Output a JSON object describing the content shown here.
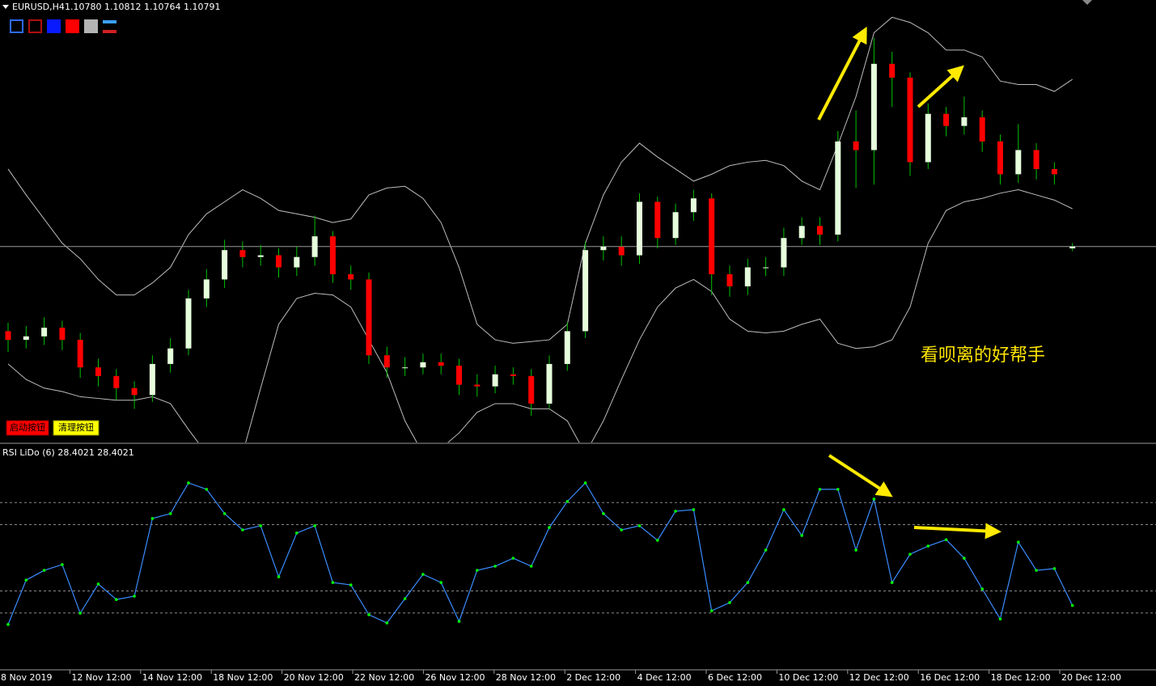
{
  "header": {
    "symbol": "EURUSD,H4",
    "quote": "1.10780 1.10812 1.10764 1.10791"
  },
  "buttons": [
    "启动按钮",
    "清理按钮"
  ],
  "annotation": "看呗离的好帮手",
  "price": {
    "type": "candlestick",
    "ylim": [
      1.0965,
      1.1222
    ],
    "open": [
      1.103,
      1.1025,
      1.1027,
      1.1032,
      1.1025,
      1.1009,
      1.1004,
      1.0997,
      1.0993,
      1.1011,
      1.102,
      1.1049,
      1.106,
      1.1077,
      1.1073,
      1.1074,
      1.1067,
      1.1073,
      1.1085,
      1.1063,
      1.106,
      1.1016,
      1.1009,
      1.1009,
      1.1012,
      1.101,
      1.0999,
      1.0998,
      1.1005,
      1.1004,
      1.0988,
      1.1011,
      1.103,
      1.1077,
      1.1079,
      1.1074,
      1.1105,
      1.1084,
      1.1099,
      1.1107,
      1.1063,
      1.1056,
      1.1067,
      1.1067,
      1.1084,
      1.1091,
      1.1086,
      1.114,
      1.1135,
      1.1185,
      1.1177,
      1.1128,
      1.1156,
      1.1149,
      1.1154,
      1.114,
      1.1121,
      1.1135,
      1.1124,
      1.1078
    ],
    "high": [
      1.1035,
      1.1033,
      1.1038,
      1.1036,
      1.1029,
      1.1014,
      1.1008,
      1.1001,
      1.1016,
      1.1026,
      1.1054,
      1.1066,
      1.1083,
      1.1082,
      1.108,
      1.1078,
      1.1079,
      1.1097,
      1.1088,
      1.1068,
      1.1064,
      1.1021,
      1.1015,
      1.1017,
      1.1017,
      1.1014,
      1.1005,
      1.101,
      1.1009,
      1.1008,
      1.1016,
      1.1035,
      1.1082,
      1.1085,
      1.1085,
      1.111,
      1.1108,
      1.1104,
      1.1112,
      1.111,
      1.1068,
      1.1072,
      1.1073,
      1.109,
      1.1096,
      1.1096,
      1.1146,
      1.1158,
      1.12,
      1.1192,
      1.118,
      1.1162,
      1.116,
      1.1166,
      1.1158,
      1.1144,
      1.115,
      1.1139,
      1.1128,
      1.10812
    ],
    "low": [
      1.1018,
      1.102,
      1.1022,
      1.1019,
      1.1003,
      1.0998,
      1.099,
      1.0985,
      1.0989,
      1.1006,
      1.1016,
      1.1044,
      1.1055,
      1.1067,
      1.1068,
      1.1061,
      1.1062,
      1.1068,
      1.1058,
      1.1054,
      1.1011,
      1.1003,
      1.1004,
      1.1005,
      1.1005,
      1.0993,
      1.0992,
      1.0994,
      1.0999,
      1.0981,
      1.0985,
      1.1007,
      1.1026,
      1.1071,
      1.1068,
      1.1069,
      1.1078,
      1.108,
      1.1094,
      1.1051,
      1.105,
      1.1051,
      1.1062,
      1.1062,
      1.108,
      1.108,
      1.1082,
      1.1113,
      1.1115,
      1.116,
      1.112,
      1.1124,
      1.1143,
      1.1144,
      1.1134,
      1.1115,
      1.1116,
      1.1118,
      1.1115,
      1.10764
    ],
    "close": [
      1.1025,
      1.1027,
      1.1032,
      1.1025,
      1.1009,
      1.1004,
      1.0997,
      1.0993,
      1.1011,
      1.102,
      1.1049,
      1.106,
      1.1077,
      1.1073,
      1.1074,
      1.1067,
      1.1073,
      1.1085,
      1.1063,
      1.106,
      1.1016,
      1.1009,
      1.1009,
      1.1012,
      1.101,
      1.0999,
      1.0998,
      1.1005,
      1.1004,
      1.0988,
      1.1011,
      1.103,
      1.1077,
      1.1079,
      1.1074,
      1.1105,
      1.1084,
      1.1099,
      1.1107,
      1.1063,
      1.1056,
      1.1067,
      1.1067,
      1.1084,
      1.1091,
      1.1086,
      1.114,
      1.1135,
      1.1185,
      1.1177,
      1.1128,
      1.1156,
      1.1149,
      1.1154,
      1.114,
      1.1121,
      1.1135,
      1.1124,
      1.1121,
      1.10791
    ],
    "upper_band": [
      1.1124,
      1.1109,
      1.1095,
      1.1081,
      1.1072,
      1.106,
      1.1051,
      1.1051,
      1.1058,
      1.1067,
      1.1086,
      1.1098,
      1.1105,
      1.1112,
      1.1107,
      1.11,
      1.1098,
      1.1096,
      1.1093,
      1.1095,
      1.1109,
      1.1113,
      1.1114,
      1.1107,
      1.1093,
      1.1067,
      1.1034,
      1.1025,
      1.1023,
      1.1024,
      1.1025,
      1.1034,
      1.1081,
      1.1109,
      1.1128,
      1.1139,
      1.1131,
      1.1124,
      1.1117,
      1.1121,
      1.1126,
      1.1128,
      1.1129,
      1.1126,
      1.1117,
      1.1112,
      1.1138,
      1.1166,
      1.1203,
      1.1212,
      1.1209,
      1.1203,
      1.1193,
      1.1193,
      1.1189,
      1.1175,
      1.1173,
      1.1173,
      1.1169,
      1.1176
    ],
    "lower_band": [
      1.1011,
      1.1002,
      1.0997,
      1.0995,
      1.0992,
      1.0991,
      1.099,
      1.099,
      1.0992,
      1.0988,
      1.0973,
      1.0959,
      1.0955,
      1.0959,
      1.0997,
      1.1034,
      1.1049,
      1.1052,
      1.1051,
      1.1044,
      1.1025,
      1.1006,
      1.0978,
      1.0959,
      1.0962,
      1.0971,
      1.0983,
      1.0988,
      1.0988,
      1.0985,
      1.0985,
      1.0978,
      1.0959,
      1.0978,
      1.1002,
      1.1025,
      1.1044,
      1.1055,
      1.106,
      1.1053,
      1.1037,
      1.103,
      1.1029,
      1.103,
      1.1034,
      1.1037,
      1.1023,
      1.102,
      1.1021,
      1.1025,
      1.1044,
      1.1081,
      1.11,
      1.1105,
      1.1107,
      1.111,
      1.1112,
      1.1109,
      1.1106,
      1.1101
    ],
    "colors": {
      "up": "#e6ffdc",
      "down": "#ff0000",
      "wick": "#00c000",
      "band": "#bdbdbd",
      "price_line": "#9a9a9a"
    }
  },
  "rsi": {
    "type": "line",
    "title": "RSI LiDo (6) 28.4021 28.4021",
    "ylim": [
      0,
      100
    ],
    "levels": [
      75,
      65,
      35,
      25
    ],
    "values": [
      19.8,
      39.9,
      44.3,
      46.9,
      24.9,
      38.1,
      31.1,
      32.6,
      67.8,
      70.0,
      83.9,
      81.0,
      70.0,
      62.6,
      64.5,
      41.4,
      61.2,
      64.5,
      38.8,
      37.7,
      24.2,
      20.5,
      31.5,
      42.5,
      38.8,
      21.2,
      44.3,
      46.2,
      49.8,
      46.2,
      63.7,
      75.5,
      83.9,
      70.0,
      62.6,
      64.5,
      57.9,
      71.1,
      71.8,
      26.0,
      29.7,
      38.8,
      53.5,
      71.8,
      60.1,
      81.0,
      81.0,
      53.5,
      76.6,
      38.8,
      51.6,
      55.3,
      58.2,
      49.8,
      35.9,
      22.3,
      57.1,
      44.3,
      45.1,
      28.4021
    ],
    "color": "#3a8cff",
    "marker_color": "#00ff00"
  },
  "x_labels": [
    "8 Nov 2019",
    "12 Nov 12:00",
    "14 Nov 12:00",
    "18 Nov 12:00",
    "20 Nov 12:00",
    "22 Nov 12:00",
    "26 Nov 12:00",
    "28 Nov 12:00",
    "2 Dec 12:00",
    "4 Dec 12:00",
    "6 Dec 12:00",
    "10 Dec 12:00",
    "12 Dec 12:00",
    "16 Dec 12:00",
    "18 Dec 12:00",
    "20 Dec 12:00"
  ]
}
